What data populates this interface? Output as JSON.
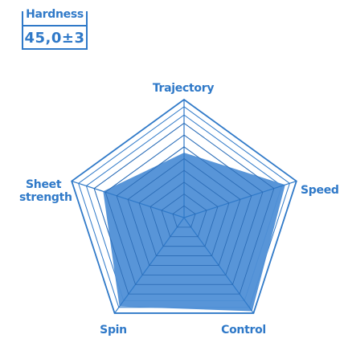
{
  "badge": {
    "title": "Hardness",
    "value": "45,0±3"
  },
  "colors": {
    "primary": "#2f79c8",
    "fill": "#4f8fd6"
  },
  "chart_data": {
    "type": "radar",
    "axes": [
      "Trajectory",
      "Speed",
      "Control",
      "Spin",
      "Sheet strength"
    ],
    "axis_labels": {
      "trajectory": "Trajectory",
      "speed": "Speed",
      "control": "Control",
      "spin": "Spin",
      "sheet_line1": "Sheet",
      "sheet_line2": "strength"
    },
    "values": [
      0.55,
      0.9,
      0.98,
      0.93,
      0.72
    ],
    "range": [
      0,
      1
    ],
    "rings": 10,
    "grid": true
  }
}
